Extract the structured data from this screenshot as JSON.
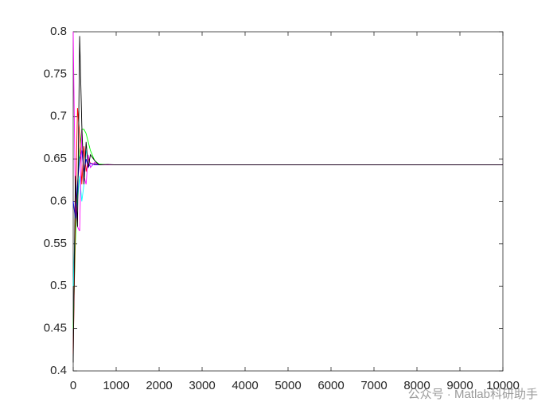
{
  "chart_data": {
    "type": "line",
    "x": [
      0,
      50,
      100,
      150,
      200,
      250,
      300,
      350,
      400,
      500,
      600,
      800,
      1000,
      10000
    ],
    "series": [
      {
        "color": "#00ff00",
        "values": [
          0.45,
          0.55,
          0.62,
          0.66,
          0.685,
          0.685,
          0.68,
          0.67,
          0.66,
          0.648,
          0.644,
          0.643,
          0.643,
          0.643
        ]
      },
      {
        "color": "#00ffff",
        "values": [
          0.5,
          0.58,
          0.6,
          0.63,
          0.6,
          0.62,
          0.66,
          0.65,
          0.64,
          0.645,
          0.643,
          0.643,
          0.643,
          0.643
        ]
      },
      {
        "color": "#ff0000",
        "values": [
          0.42,
          0.58,
          0.71,
          0.68,
          0.62,
          0.665,
          0.635,
          0.65,
          0.645,
          0.644,
          0.643,
          0.643,
          0.643,
          0.643
        ]
      },
      {
        "color": "#0000ff",
        "values": [
          0.6,
          0.58,
          0.62,
          0.65,
          0.66,
          0.635,
          0.65,
          0.64,
          0.645,
          0.643,
          0.643,
          0.643,
          0.643,
          0.643
        ]
      },
      {
        "color": "#ff00ff",
        "values": [
          0.8,
          0.6,
          0.57,
          0.565,
          0.685,
          0.63,
          0.62,
          0.655,
          0.64,
          0.646,
          0.643,
          0.643,
          0.643,
          0.643
        ]
      },
      {
        "color": "#000000",
        "values": [
          0.41,
          0.63,
          0.57,
          0.795,
          0.69,
          0.62,
          0.67,
          0.64,
          0.655,
          0.648,
          0.643,
          0.6435,
          0.643,
          0.643
        ]
      }
    ],
    "xlim": [
      0,
      10000
    ],
    "xticks": [
      0,
      1000,
      2000,
      3000,
      4000,
      5000,
      6000,
      7000,
      8000,
      9000,
      10000
    ],
    "ylim": [
      0.4,
      0.8
    ],
    "yticks": [
      0.4,
      0.45,
      0.5,
      0.55,
      0.6,
      0.65,
      0.7,
      0.75,
      0.8
    ],
    "grid": false,
    "watermark": "公众号 · Matlab科研助手"
  }
}
